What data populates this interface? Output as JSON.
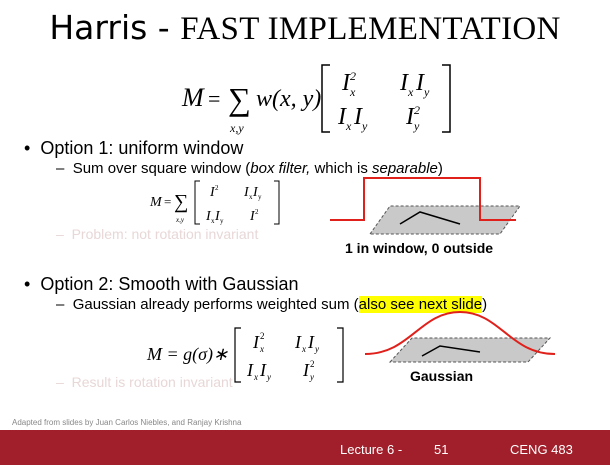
{
  "slide": {
    "title_main": "Harris - ",
    "title_caps": "FAST IMPLEMENTATION",
    "main_equation": {
      "lhs": "M",
      "eq": "=",
      "sum": "∑",
      "sum_sub": "x,y",
      "weight": "w(x, y)",
      "cells": [
        "I",
        "I I",
        "I I",
        "I"
      ]
    },
    "option1": {
      "bullet": "Option 1: uniform window",
      "sub_prefix": "Sum over square window (",
      "sub_italic1": "box filter,",
      "sub_mid": " which is ",
      "sub_italic2": "separable",
      "sub_suffix": ")",
      "ghost": "Problem: not rotation invariant",
      "caption": "1 in window, 0 outside"
    },
    "option2": {
      "bullet": "Option 2: Smooth with Gaussian",
      "sub_prefix": "Gaussian already performs weighted sum (",
      "sub_highlight": "also see next slide",
      "sub_suffix": ")",
      "ghost": "Result is rotation invariant",
      "caption": "Gaussian",
      "equation_lhs": "M = g(σ)∗"
    },
    "dash": "–",
    "bullet_dot": "•",
    "credit": "Adapted from slides by Juan Carlos Niebles, and Ranjay Krishna",
    "footer": {
      "lecture": "Lecture 6 -",
      "page": "51",
      "course": "CENG 483"
    },
    "colors": {
      "footer_bg": "#a01f2a",
      "curve": "#e0201b",
      "highlight": "#ffff00"
    }
  }
}
